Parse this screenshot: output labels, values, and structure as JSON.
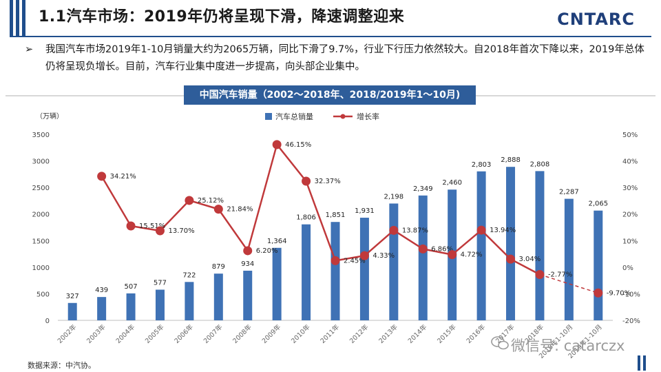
{
  "header": {
    "title": "1.1汽车市场：2019年仍将呈现下滑，降速调整迎来",
    "logo": "CNTARC"
  },
  "bullet": {
    "marker": "➢",
    "text": "我国汽车市场2019年1-10月销量大约为2065万辆，同比下滑了9.7%，行业下行压力依然较大。自2018年首次下降以来，2019年总体仍将呈现负增长。目前，汽车行业集中度进一步提高，向头部企业集中。"
  },
  "chart_data": {
    "type": "bar",
    "title": "中国汽车销量（2002～2018年、2018/2019年1～10月)",
    "ylabel": "（万辆）",
    "ylim": [
      0,
      3500
    ],
    "y_ticks": [
      "0",
      "500",
      "1000",
      "1500",
      "2000",
      "2500",
      "3000",
      "3500"
    ],
    "y2lim": [
      -20,
      50
    ],
    "y2_ticks": [
      "-20%",
      "-10%",
      "0%",
      "10%",
      "20%",
      "30%",
      "40%",
      "50%"
    ],
    "categories": [
      "2002年",
      "2003年",
      "2004年",
      "2005年",
      "2006年",
      "2007年",
      "2008年",
      "2009年",
      "2010年",
      "2011年",
      "2012年",
      "2013年",
      "2014年",
      "2015年",
      "2016年",
      "2017年",
      "2018年",
      "2018年1-10月",
      "2019年1-10月"
    ],
    "series": [
      {
        "name": "汽车总销量",
        "type": "bar",
        "color": "#3f72b5",
        "values": [
          327,
          439,
          507,
          577,
          722,
          879,
          934,
          1364,
          1806,
          1851,
          1931,
          2198,
          2349,
          2460,
          2803,
          2888,
          2808,
          2287,
          2065
        ],
        "labels": [
          "327",
          "439",
          "507",
          "577",
          "722",
          "879",
          "934",
          "1,364",
          "1,806",
          "1,851",
          "1,931",
          "2,198",
          "2,349",
          "2,460",
          "2,803",
          "2,888",
          "2,808",
          "2,287",
          "2,065"
        ]
      },
      {
        "name": "增长率",
        "type": "line",
        "axis": "right",
        "color": "#c0393b",
        "values": [
          null,
          34.21,
          15.51,
          13.7,
          25.12,
          21.84,
          6.2,
          46.15,
          32.37,
          2.45,
          4.33,
          13.87,
          6.86,
          4.72,
          13.94,
          3.04,
          -2.77,
          null,
          -9.7
        ],
        "labels": [
          "",
          "34.21%",
          "15.51%",
          "13.70%",
          "25.12%",
          "21.84%",
          "6.20%",
          "46.15%",
          "32.37%",
          "2.45%",
          "4.33%",
          "13.87%",
          "6.86%",
          "4.72%",
          "13.94%",
          "3.04%",
          "-2.77%",
          "",
          "-9.70%"
        ],
        "dashed_segment": [
          16,
          18
        ]
      }
    ],
    "legend_position": "top-center",
    "grid": false
  },
  "footer": {
    "source": "数据来源：中汽协。",
    "watermark": "微信号: catarczx"
  },
  "colors": {
    "brand": "#1f4e8c",
    "bar": "#3f72b5",
    "line": "#c0393b"
  }
}
